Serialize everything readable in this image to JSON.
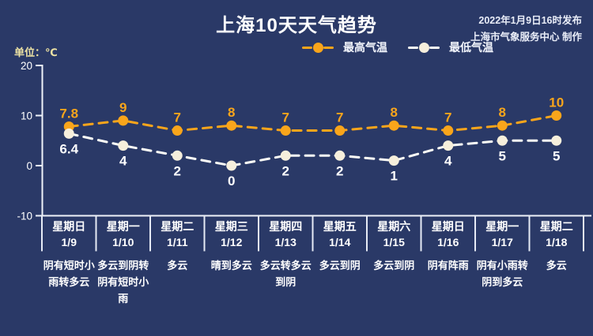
{
  "header": {
    "title": "上海10天天气趋势",
    "publish_line1": "2022年1月9日16时发布",
    "publish_line2": "上海市气象服务中心 制作"
  },
  "unit_label": "单位：℃",
  "legend": {
    "high_label": "最高气温",
    "low_label": "最低气温"
  },
  "colors": {
    "background": "#2A3967",
    "high_series": "#F9A51B",
    "low_series_line": "#FCFCF6",
    "low_dot_fill": "#F6EFDC",
    "axis": "#EFF2F9",
    "separator": "#E6EBF5",
    "value_label_high": "#F9A51B",
    "value_label_low": "#FFFFFF"
  },
  "chart_data": {
    "type": "line",
    "title": "上海10天天气趋势",
    "ylabel": "℃",
    "ylim": [
      -10,
      20
    ],
    "yticks": [
      20,
      10,
      0,
      -10
    ],
    "grid": false,
    "legend_position": "top",
    "categories": [
      {
        "day": "星期日",
        "date": "1/9",
        "desc": "阴有短时小雨转多云"
      },
      {
        "day": "星期一",
        "date": "1/10",
        "desc": "多云到阴转阴有短时小雨"
      },
      {
        "day": "星期二",
        "date": "1/11",
        "desc": "多云"
      },
      {
        "day": "星期三",
        "date": "1/12",
        "desc": "晴到多云"
      },
      {
        "day": "星期四",
        "date": "1/13",
        "desc": "多云转多云到阴"
      },
      {
        "day": "星期五",
        "date": "1/14",
        "desc": "多云到阴"
      },
      {
        "day": "星期六",
        "date": "1/15",
        "desc": "多云到阴"
      },
      {
        "day": "星期日",
        "date": "1/16",
        "desc": "阴有阵雨"
      },
      {
        "day": "星期一",
        "date": "1/17",
        "desc": "阴有小雨转阴到多云"
      },
      {
        "day": "星期二",
        "date": "1/18",
        "desc": "多云"
      }
    ],
    "series": [
      {
        "name": "最高气温",
        "values": [
          7.8,
          9,
          7,
          8,
          7,
          7,
          8,
          7,
          8,
          10
        ]
      },
      {
        "name": "最低气温",
        "values": [
          6.4,
          4,
          2,
          0,
          2,
          2,
          1,
          4,
          5,
          5
        ]
      }
    ]
  }
}
